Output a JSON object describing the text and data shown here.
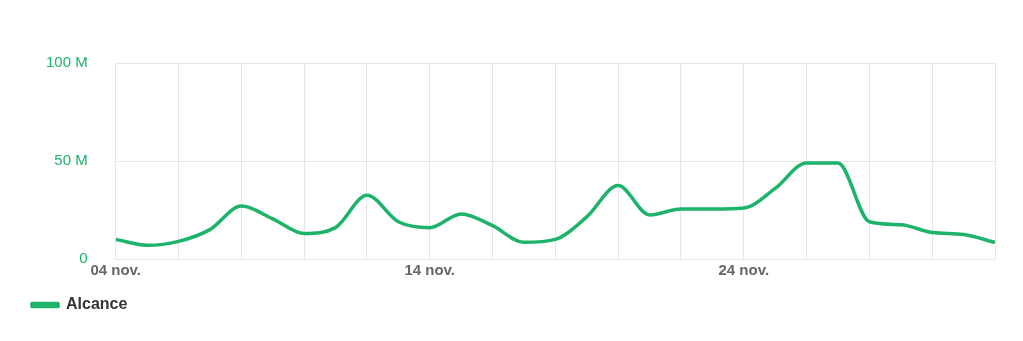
{
  "chart_data": {
    "type": "line",
    "x": [
      "--11-04",
      "--11-05",
      "--11-06",
      "--11-07",
      "--11-08",
      "--11-09",
      "--11-10",
      "--11-11",
      "--11-12",
      "--11-13",
      "--11-14",
      "--11-15",
      "--11-16",
      "--11-17",
      "--11-18",
      "--11-19",
      "--11-20",
      "--11-21",
      "--11-22",
      "--11-23",
      "--11-24",
      "--11-25",
      "--11-26",
      "--11-27",
      "--11-28",
      "--11-29",
      "--11-30",
      "--12-01",
      "--12-02"
    ],
    "series": [
      {
        "name": "Alcance",
        "color": "#1db36b",
        "values": [
          10,
          7,
          9,
          15,
          27,
          20.5,
          13,
          16,
          32.5,
          19,
          16,
          23,
          17,
          8.5,
          10,
          21.5,
          37.5,
          22.5,
          25.5,
          25.5,
          26,
          36,
          49,
          49,
          19,
          17.5,
          13.5,
          12.5,
          8.5
        ]
      }
    ],
    "xlim": [
      "--11-04",
      "--12-02"
    ],
    "xticks": [
      {
        "value": "--11-04",
        "label": "04 nov."
      },
      {
        "value": "--11-06",
        "label": null
      },
      {
        "value": "--11-08",
        "label": null
      },
      {
        "value": "--11-10",
        "label": null
      },
      {
        "value": "--11-12",
        "label": null
      },
      {
        "value": "--11-14",
        "label": "14 nov."
      },
      {
        "value": "--11-16",
        "label": null
      },
      {
        "value": "--11-18",
        "label": null
      },
      {
        "value": "--11-20",
        "label": null
      },
      {
        "value": "--11-22",
        "label": null
      },
      {
        "value": "--11-24",
        "label": "24 nov."
      },
      {
        "value": "--11-26",
        "label": null
      },
      {
        "value": "--11-28",
        "label": null
      },
      {
        "value": "--11-30",
        "label": null
      },
      {
        "value": "--12-02",
        "label": null
      }
    ],
    "ylim": [
      0,
      100
    ],
    "yticks": [
      0,
      {
        "value": 50,
        "label": "50 M"
      },
      {
        "value": 100,
        "label": "100 M"
      }
    ],
    "grid": true,
    "legend": "bottom left"
  }
}
